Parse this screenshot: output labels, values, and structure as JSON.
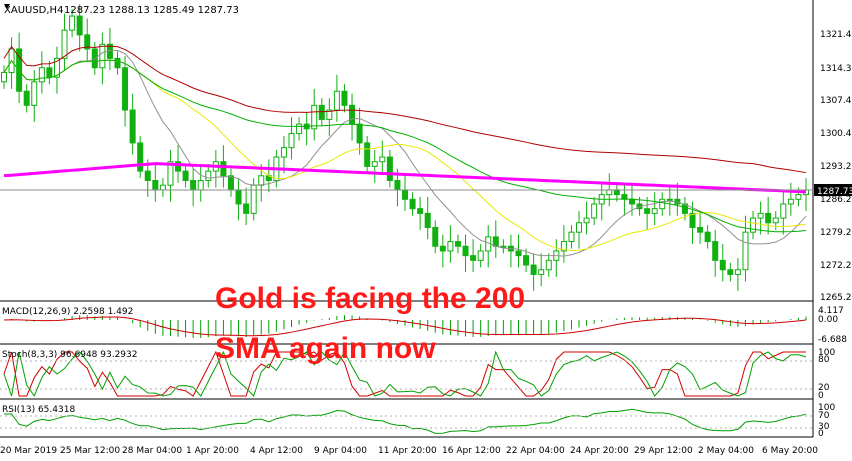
{
  "colors": {
    "bull": "#10b010",
    "bear": "#10b010",
    "sma200": "#ff00ff",
    "sma100": "#b00000",
    "sma50": "#00b000",
    "sma20": "#e8e800",
    "sma10": "#909090",
    "macdHist": "#00a000",
    "macdSignal": "#d00000",
    "stochMain": "#d00000",
    "stochSignal": "#00a000",
    "rsi": "#00a000",
    "priceLine": "#8b8b8b",
    "grid": "#000000"
  },
  "header": {
    "symbol": "XAUUSD,H4",
    "ohlc": "1287.23 1288.13 1285.49 1287.73"
  },
  "price_axis": {
    "labels": [
      "1321.40",
      "1314.30",
      "1307.40",
      "1300.40",
      "1293.20",
      "1286.20",
      "1279.20",
      "1272.20",
      "1265.20"
    ],
    "current": "1287.73"
  },
  "macd": {
    "title": "MACD(12,26,9) 2.2598 1.492",
    "labels": [
      "4.117",
      "0.00",
      "-6.688"
    ]
  },
  "stoch": {
    "title": "Stoch(8,3,3) 96.6948 93.2932",
    "labels": [
      "100",
      "80",
      "20",
      "0"
    ]
  },
  "rsi": {
    "title": "RSI(13) 65.4318",
    "labels": [
      "100",
      "70",
      "30",
      "0"
    ]
  },
  "time_axis": {
    "labels": [
      "20 Mar 2019",
      "25 Mar 12:00",
      "28 Mar 04:00",
      "1 Apr 20:00",
      "4 Apr 12:00",
      "9 Apr 04:00",
      "11 Apr 20:00",
      "16 Apr 12:00",
      "22 Apr 04:00",
      "24 Apr 20:00",
      "29 Apr 12:00",
      "2 May 04:00",
      "6 May 20:00"
    ]
  },
  "headline": {
    "line1": "Gold is facing the 200",
    "line2": "SMA again now"
  },
  "chart_data": {
    "type": "candlestick",
    "symbol": "XAUUSD",
    "timeframe": "H4",
    "last": 1287.73,
    "closes": [
      1313,
      1318,
      1309,
      1306,
      1311,
      1314,
      1312,
      1316,
      1322,
      1325,
      1321,
      1318,
      1314,
      1319,
      1316,
      1314,
      1305,
      1298,
      1292,
      1290,
      1288,
      1289,
      1294,
      1292,
      1290,
      1288,
      1290,
      1292,
      1294,
      1291,
      1288,
      1285,
      1283,
      1289,
      1291,
      1290,
      1295,
      1297,
      1300,
      1302,
      1301,
      1306,
      1303,
      1305,
      1309,
      1306,
      1302,
      1298,
      1293,
      1294,
      1295,
      1290,
      1288,
      1286,
      1284,
      1283,
      1280,
      1276,
      1275,
      1277,
      1276,
      1274,
      1273,
      1275,
      1278,
      1276,
      1276,
      1275,
      1274,
      1272,
      1270,
      1271,
      1273,
      1275,
      1277,
      1279,
      1281,
      1282,
      1285,
      1287,
      1288,
      1287,
      1286,
      1285,
      1284,
      1283,
      1284,
      1286,
      1286,
      1285,
      1283,
      1280,
      1279,
      1277,
      1273,
      1271,
      1270,
      1271,
      1279,
      1282,
      1283,
      1281,
      1282,
      1285,
      1286,
      1287,
      1288
    ]
  }
}
